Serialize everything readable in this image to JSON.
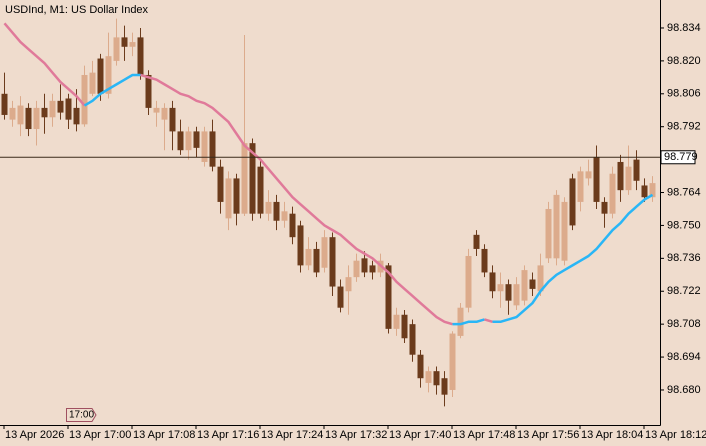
{
  "chart_data": {
    "type": "candlestick",
    "title": "USDInd, M1:  US Dollar Index",
    "categories": [
      "13 Apr 2026",
      null,
      null,
      null,
      null,
      null,
      null,
      null,
      "13 Apr 17:00",
      null,
      null,
      null,
      null,
      null,
      null,
      null,
      "13 Apr 17:08",
      null,
      null,
      null,
      null,
      null,
      null,
      null,
      "13 Apr 17:16",
      null,
      null,
      null,
      null,
      null,
      null,
      null,
      "13 Apr 17:24",
      null,
      null,
      null,
      null,
      null,
      null,
      null,
      "13 Apr 17:32",
      null,
      null,
      null,
      null,
      null,
      null,
      null,
      "13 Apr 17:40",
      null,
      null,
      null,
      null,
      null,
      null,
      null,
      "13 Apr 17:48",
      null,
      null,
      null,
      null,
      null,
      null,
      null,
      "13 Apr 17:56",
      null,
      null,
      null,
      null,
      null,
      null,
      null,
      "13 Apr 18:04",
      null,
      null,
      null,
      null,
      null,
      null,
      null,
      "13 Apr 18:12",
      null
    ],
    "open": [
      98.806,
      98.795,
      98.793,
      98.8,
      98.791,
      98.8,
      98.796,
      98.803,
      98.804,
      98.8,
      98.793,
      98.806,
      98.821,
      98.806,
      98.82,
      98.83,
      98.826,
      98.83,
      98.814,
      98.798,
      98.795,
      98.8,
      98.79,
      98.782,
      98.79,
      98.777,
      98.79,
      98.775,
      98.753,
      98.77,
      98.755,
      98.785,
      98.775,
      98.755,
      98.76,
      98.752,
      98.755,
      98.75,
      98.733,
      98.74,
      98.732,
      98.745,
      98.724,
      98.722,
      98.728,
      98.736,
      98.733,
      98.73,
      98.733,
      98.706,
      98.712,
      98.708,
      98.695,
      98.683,
      98.688,
      98.685,
      98.68,
      98.703,
      98.715,
      98.746,
      98.74,
      98.73,
      98.722,
      98.725,
      98.716,
      98.718,
      98.727,
      98.722,
      98.736,
      98.736,
      98.735,
      98.77,
      98.76,
      98.77,
      98.779,
      98.76,
      98.755,
      98.777,
      98.765,
      98.778,
      98.767,
      98.762
    ],
    "high": [
      98.815,
      98.803,
      98.805,
      98.802,
      98.803,
      98.806,
      98.806,
      98.81,
      98.806,
      98.808,
      98.818,
      98.82,
      98.823,
      98.832,
      98.838,
      98.835,
      98.832,
      98.834,
      98.816,
      98.803,
      98.802,
      98.803,
      98.795,
      98.792,
      98.792,
      98.792,
      98.795,
      98.778,
      98.773,
      98.772,
      98.831,
      98.787,
      98.778,
      98.765,
      98.763,
      98.76,
      98.758,
      98.752,
      98.745,
      98.743,
      98.748,
      98.747,
      98.727,
      98.733,
      98.738,
      98.739,
      98.735,
      98.738,
      98.734,
      98.715,
      98.714,
      98.71,
      98.697,
      98.69,
      98.69,
      98.688,
      98.705,
      98.717,
      98.74,
      98.748,
      98.742,
      98.733,
      98.73,
      98.727,
      98.728,
      98.733,
      98.73,
      98.738,
      98.76,
      98.765,
      98.762,
      98.772,
      98.775,
      98.778,
      98.784,
      98.762,
      98.775,
      98.78,
      98.784,
      98.782,
      98.77,
      98.771
    ],
    "low": [
      98.795,
      98.792,
      98.788,
      98.788,
      98.784,
      98.789,
      98.792,
      98.795,
      98.791,
      98.79,
      98.792,
      98.805,
      98.803,
      98.804,
      98.818,
      98.82,
      98.822,
      98.812,
      98.797,
      98.792,
      98.782,
      98.782,
      98.78,
      98.778,
      98.779,
      98.775,
      98.773,
      98.755,
      98.748,
      98.75,
      98.754,
      98.752,
      98.753,
      98.752,
      98.748,
      98.749,
      98.742,
      98.73,
      98.731,
      98.728,
      98.73,
      98.72,
      98.713,
      98.712,
      98.726,
      98.728,
      98.727,
      98.728,
      98.704,
      98.703,
      98.7,
      98.692,
      98.681,
      98.679,
      98.678,
      98.673,
      98.677,
      98.702,
      98.713,
      98.737,
      98.728,
      98.719,
      98.715,
      98.712,
      98.714,
      98.716,
      98.72,
      98.72,
      98.734,
      98.733,
      98.733,
      98.748,
      98.756,
      98.767,
      98.757,
      98.749,
      98.753,
      98.76,
      98.763,
      98.765,
      98.76,
      98.76
    ],
    "close": [
      98.797,
      98.8,
      98.801,
      98.791,
      98.8,
      98.796,
      98.803,
      98.798,
      98.795,
      98.793,
      98.814,
      98.815,
      98.806,
      98.822,
      98.83,
      98.826,
      98.828,
      98.814,
      98.8,
      98.8,
      98.8,
      98.79,
      98.782,
      98.79,
      98.783,
      98.79,
      98.775,
      98.76,
      98.77,
      98.755,
      98.785,
      98.755,
      98.755,
      98.76,
      98.752,
      98.756,
      98.745,
      98.733,
      98.74,
      98.73,
      98.745,
      98.724,
      98.715,
      98.728,
      98.735,
      98.73,
      98.73,
      98.735,
      98.706,
      98.712,
      98.702,
      98.695,
      98.685,
      98.688,
      98.682,
      98.678,
      98.704,
      98.715,
      98.737,
      98.74,
      98.73,
      98.722,
      98.725,
      98.718,
      98.725,
      98.731,
      98.723,
      98.733,
      98.757,
      98.763,
      98.76,
      98.75,
      98.773,
      98.773,
      98.76,
      98.755,
      98.772,
      98.765,
      98.775,
      98.769,
      98.762,
      98.768
    ],
    "up_color": "#dcab8c",
    "down_color": "#6b3b1c",
    "ma": {
      "values": [
        98.836,
        98.832,
        98.828,
        98.825,
        98.822,
        98.819,
        98.815,
        98.811,
        98.808,
        98.805,
        98.801,
        98.803,
        98.806,
        98.808,
        98.81,
        98.812,
        98.814,
        98.814,
        98.813,
        98.812,
        98.81,
        98.808,
        98.806,
        98.805,
        98.803,
        98.802,
        98.8,
        98.797,
        98.794,
        98.789,
        98.784,
        98.781,
        98.778,
        98.774,
        98.77,
        98.766,
        98.762,
        98.759,
        98.756,
        98.753,
        98.75,
        98.748,
        98.746,
        98.743,
        98.74,
        98.738,
        98.736,
        98.733,
        98.73,
        98.726,
        98.723,
        98.72,
        98.717,
        98.714,
        98.711,
        98.709,
        98.708,
        98.708,
        98.709,
        98.709,
        98.71,
        98.709,
        98.709,
        98.71,
        98.711,
        98.714,
        98.717,
        98.722,
        98.726,
        98.729,
        98.731,
        98.733,
        98.735,
        98.737,
        98.74,
        98.744,
        98.748,
        98.751,
        98.755,
        98.758,
        98.761,
        98.763
      ],
      "up_color": "#29b6f6",
      "down_color": "#e07a9a"
    },
    "price_line": 98.779,
    "annotation": "17:00",
    "ylim": [
      98.6651,
      98.8459
    ],
    "yticks": [
      98.834,
      {
        "value": 98.82,
        "label": "98.820"
      },
      98.806,
      98.792,
      98.764,
      {
        "value": 98.75,
        "label": "98.750"
      },
      98.736,
      98.722,
      98.708,
      98.694,
      {
        "value": 98.68,
        "label": "98.680"
      }
    ]
  }
}
